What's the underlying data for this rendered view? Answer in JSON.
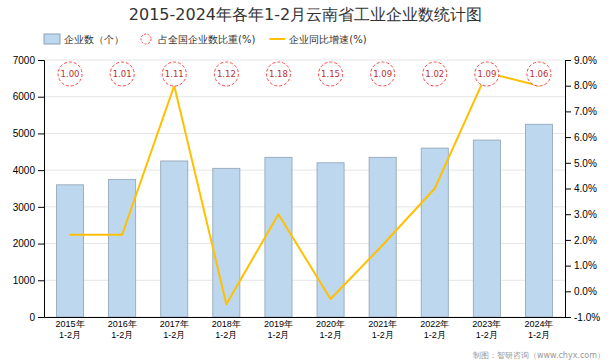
{
  "chart_data": {
    "type": "bar",
    "title": "2015-2024年各年1-2月云南省工业企业数统计图",
    "categories": [
      "2015年\n1-2月",
      "2016年\n1-2月",
      "2017年\n1-2月",
      "2018年\n1-2月",
      "2019年\n1-2月",
      "2020年\n1-2月",
      "2021年\n1-2月",
      "2022年\n1-2月",
      "2023年\n1-2月",
      "2024年\n1-2月"
    ],
    "series": [
      {
        "name": "企业数（个）",
        "type": "bar",
        "color": "#BDD7EE",
        "values": [
          3600,
          3750,
          4250,
          4050,
          4350,
          4200,
          4350,
          4600,
          4820,
          5250
        ]
      },
      {
        "name": "占全国企业数比重(%)",
        "type": "label",
        "marker": "circle",
        "color": "#FF4444",
        "values": [
          1.0,
          1.01,
          1.11,
          1.12,
          1.18,
          1.15,
          1.09,
          1.02,
          1.09,
          1.06
        ],
        "value_labels": [
          "1.00",
          "1.01",
          "1.11",
          "1.12",
          "1.18",
          "1.15",
          "1.09",
          "1.02",
          "1.09",
          "1.06"
        ]
      },
      {
        "name": "企业同比增速(%)",
        "type": "line",
        "color": "#FFC000",
        "axis": "y2",
        "values": [
          2.2,
          2.2,
          8.0,
          -0.5,
          3.0,
          -0.3,
          1.8,
          4.0,
          8.5,
          8.0
        ]
      }
    ],
    "ylim": [
      0,
      7000
    ],
    "yticks": [
      0,
      1000,
      2000,
      3000,
      4000,
      5000,
      6000,
      7000
    ],
    "y2lim": [
      -1.0,
      9.0
    ],
    "y2ticks": [
      {
        "value": -1.0,
        "label": "-1.0%"
      },
      {
        "value": 0.0,
        "label": "0.0%"
      },
      {
        "value": 1.0,
        "label": "1.0%"
      },
      {
        "value": 2.0,
        "label": "2.0%"
      },
      {
        "value": 3.0,
        "label": "3.0%"
      },
      {
        "value": 4.0,
        "label": "4.0%"
      },
      {
        "value": 5.0,
        "label": "5.0%"
      },
      {
        "value": 6.0,
        "label": "6.0%"
      },
      {
        "value": 7.0,
        "label": "7.0%"
      },
      {
        "value": 8.0,
        "label": "8.0%"
      },
      {
        "value": 9.0,
        "label": "9.0%"
      }
    ],
    "grid": true,
    "legend": "upper left",
    "annotations": [
      "制图：智研咨询（www.chyx.com）"
    ]
  }
}
